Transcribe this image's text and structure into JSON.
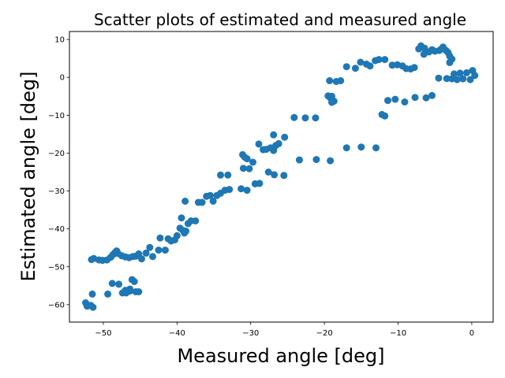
{
  "chart_data": {
    "type": "scatter",
    "title": "Scatter plots of estimated and measured angle",
    "xlabel": "Measured angle [deg]",
    "ylabel": "Estimated angle [deg]",
    "xlim": [
      -54.6,
      2.9
    ],
    "ylim": [
      -64.6,
      12.1
    ],
    "xticks": [
      -50,
      -40,
      -30,
      -20,
      -10,
      0
    ],
    "yticks": [
      -60,
      -50,
      -40,
      -30,
      -20,
      -10,
      0,
      10
    ],
    "grid": false,
    "color": "#1f77b4",
    "series": [
      {
        "points": [
          [
            -52.4,
            -59.5
          ],
          [
            -52.2,
            -60.4
          ],
          [
            -51.7,
            -60.2
          ],
          [
            -51.4,
            -60.7
          ],
          [
            -51.5,
            -57.2
          ],
          [
            -51.3,
            -47.8
          ],
          [
            -51.6,
            -48.1
          ],
          [
            -50.6,
            -48.2
          ],
          [
            -50.1,
            -48.3
          ],
          [
            -49.5,
            -48.2
          ],
          [
            -49.0,
            -47.5
          ],
          [
            -48.7,
            -46.8
          ],
          [
            -48.4,
            -46.2
          ],
          [
            -48.2,
            -45.8
          ],
          [
            -48.0,
            -46.5
          ],
          [
            -47.5,
            -47.1
          ],
          [
            -47.0,
            -47.4
          ],
          [
            -46.5,
            -47.6
          ],
          [
            -46.0,
            -47.3
          ],
          [
            -45.6,
            -47.2
          ],
          [
            -45.2,
            -46.6
          ],
          [
            -44.8,
            -47.9
          ],
          [
            -44.2,
            -46.4
          ],
          [
            -43.7,
            -44.9
          ],
          [
            -43.3,
            -47.3
          ],
          [
            -42.3,
            -42.4
          ],
          [
            -42.5,
            -45.6
          ],
          [
            -41.6,
            -45.6
          ],
          [
            -41.2,
            -42.6
          ],
          [
            -40.8,
            -43.2
          ],
          [
            -40.3,
            -42.9
          ],
          [
            -40.0,
            -41.8
          ],
          [
            -39.6,
            -39.8
          ],
          [
            -39.2,
            -40.4
          ],
          [
            -39.0,
            -41.1
          ],
          [
            -38.8,
            -40.6
          ],
          [
            -39.4,
            -37.1
          ],
          [
            -38.5,
            -38.6
          ],
          [
            -38.1,
            -37.9
          ],
          [
            -37.5,
            -37.9
          ],
          [
            -37.1,
            -33.0
          ],
          [
            -36.6,
            -33.0
          ],
          [
            -36.0,
            -31.4
          ],
          [
            -35.5,
            -31.2
          ],
          [
            -35.1,
            -32.7
          ],
          [
            -34.6,
            -31.2
          ],
          [
            -34.1,
            -30.6
          ],
          [
            -33.5,
            -29.8
          ],
          [
            -32.9,
            -29.6
          ],
          [
            -34.1,
            -25.8
          ],
          [
            -33.1,
            -25.8
          ],
          [
            -38.9,
            -32.7
          ],
          [
            -31.3,
            -29.4
          ],
          [
            -30.5,
            -29.8
          ],
          [
            -29.4,
            -28.1
          ],
          [
            -28.8,
            -28.0
          ],
          [
            -27.6,
            -25.0
          ],
          [
            -26.8,
            -25.7
          ],
          [
            -25.5,
            -25.9
          ],
          [
            -31.0,
            -24.0
          ],
          [
            -30.2,
            -24.1
          ],
          [
            -30.5,
            -21.5
          ],
          [
            -31.1,
            -20.4
          ],
          [
            -30.8,
            -21.1
          ],
          [
            -29.7,
            -22.4
          ],
          [
            -28.9,
            -17.6
          ],
          [
            -28.3,
            -19.1
          ],
          [
            -27.9,
            -19.0
          ],
          [
            -27.3,
            -18.6
          ],
          [
            -26.9,
            -19.3
          ],
          [
            -26.6,
            -18.0
          ],
          [
            -26.2,
            -17.5
          ],
          [
            -26.9,
            -15.2
          ],
          [
            -25.4,
            -15.8
          ],
          [
            -24.1,
            -10.6
          ],
          [
            -22.6,
            -10.7
          ],
          [
            -21.2,
            -10.7
          ],
          [
            -23.4,
            -21.8
          ],
          [
            -21.1,
            -21.7
          ],
          [
            -19.2,
            -22.0
          ],
          [
            -19.2,
            -5.4
          ],
          [
            -19.0,
            -6.6
          ],
          [
            -19.5,
            -4.9
          ],
          [
            -18.7,
            -6.3
          ],
          [
            -19.3,
            -0.9
          ],
          [
            -18.4,
            -1.1
          ],
          [
            -17.8,
            -0.9
          ],
          [
            -17.0,
            2.8
          ],
          [
            -15.8,
            2.4
          ],
          [
            -15.1,
            4.0
          ],
          [
            -14.3,
            3.5
          ],
          [
            -13.8,
            3.0
          ],
          [
            -13.1,
            4.4
          ],
          [
            -12.6,
            4.7
          ],
          [
            -11.8,
            4.7
          ],
          [
            -10.8,
            3.2
          ],
          [
            -10.1,
            3.3
          ],
          [
            -9.4,
            3.0
          ],
          [
            -8.9,
            2.3
          ],
          [
            -8.3,
            2.2
          ],
          [
            -7.8,
            2.6
          ],
          [
            -6.9,
            8.3
          ],
          [
            -6.4,
            7.7
          ],
          [
            -5.8,
            6.7
          ],
          [
            -5.4,
            7.3
          ],
          [
            -5.0,
            6.9
          ],
          [
            -4.4,
            7.1
          ],
          [
            -3.9,
            8.0
          ],
          [
            -3.5,
            7.1
          ],
          [
            -3.2,
            6.5
          ],
          [
            -3.0,
            5.6
          ],
          [
            -2.7,
            4.8
          ],
          [
            -3.0,
            3.9
          ],
          [
            -2.4,
            0.9
          ],
          [
            -1.6,
            1.1
          ],
          [
            -0.7,
            1.2
          ],
          [
            0.1,
            1.8
          ],
          [
            0.4,
            0.5
          ],
          [
            -0.2,
            -0.6
          ],
          [
            -1.2,
            -0.4
          ],
          [
            -2.0,
            -0.6
          ],
          [
            -2.7,
            -0.4
          ],
          [
            -3.4,
            -0.3
          ],
          [
            -4.5,
            -0.2
          ],
          [
            -5.4,
            -4.8
          ],
          [
            -6.2,
            -5.4
          ],
          [
            -7.7,
            -5.3
          ],
          [
            -9.1,
            -6.5
          ],
          [
            -10.4,
            -5.8
          ],
          [
            -11.4,
            -6.1
          ],
          [
            -12.2,
            -9.8
          ],
          [
            -11.8,
            -10.2
          ],
          [
            -13.0,
            -18.6
          ],
          [
            -15.0,
            -18.4
          ],
          [
            -17.0,
            -18.6
          ],
          [
            -19.0,
            -5.0
          ],
          [
            -6.5,
            6.1
          ],
          [
            -7.2,
            7.5
          ],
          [
            -4.1,
            7.5
          ],
          [
            -49.4,
            -57.2
          ],
          [
            -48.8,
            -54.4
          ],
          [
            -47.9,
            -54.6
          ],
          [
            -47.4,
            -56.9
          ],
          [
            -46.9,
            -56.9
          ],
          [
            -46.4,
            -56.4
          ],
          [
            -46.1,
            -53.4
          ],
          [
            -45.8,
            -53.9
          ],
          [
            -45.6,
            -56.6
          ],
          [
            -45.2,
            -56.6
          ],
          [
            -47.0,
            -56.2
          ],
          [
            -46.4,
            -55.9
          ]
        ]
      }
    ]
  }
}
